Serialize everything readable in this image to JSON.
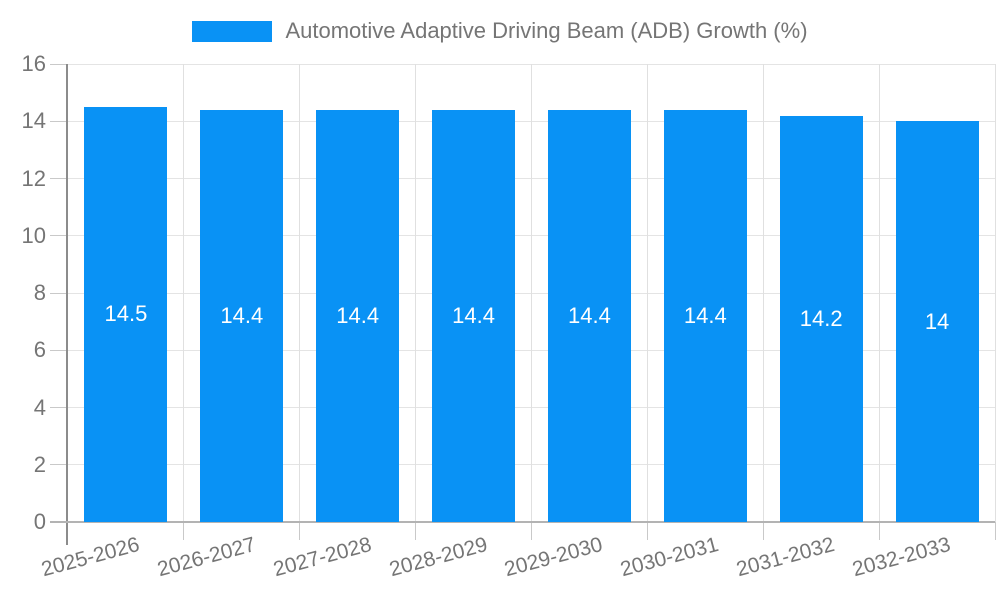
{
  "chart_data": {
    "type": "bar",
    "title": "Automotive Adaptive Driving Beam (ADB) Growth (%)",
    "legend_position": "top-center",
    "categories": [
      "2025-2026",
      "2026-2027",
      "2027-2028",
      "2028-2029",
      "2029-2030",
      "2030-2031",
      "2031-2032",
      "2032-2033"
    ],
    "values": [
      14.5,
      14.4,
      14.4,
      14.4,
      14.4,
      14.4,
      14.2,
      14
    ],
    "bar_labels": [
      "14.5",
      "14.4",
      "14.4",
      "14.4",
      "14.4",
      "14.4",
      "14.2",
      "14"
    ],
    "xlabel": "",
    "ylabel": "",
    "ylim": [
      0,
      16
    ],
    "yticks": [
      0,
      2,
      4,
      6,
      8,
      10,
      12,
      14,
      16
    ],
    "grid": true,
    "colors": {
      "bar": "#0992f5",
      "bar_value_text": "#ffffff",
      "axis_text": "#757575",
      "gridline_h": "#e4e4e4",
      "gridline_v": "#e0e0e0",
      "axis_line": "#8c8c8c",
      "baseline": "#b3b3b3",
      "tick": "#c9c9c9",
      "background": "#ffffff"
    }
  }
}
